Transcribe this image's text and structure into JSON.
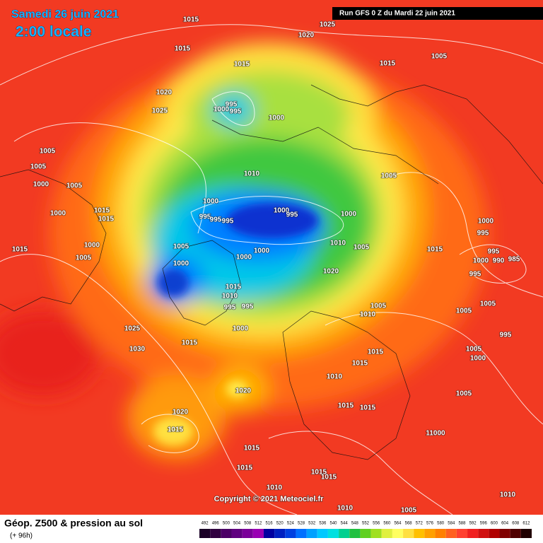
{
  "header": {
    "date": "Samedi 26 juin 2021",
    "time": "2:00 locale",
    "run": "Run GFS 0 Z du Mardi 22 juin 2021"
  },
  "copyright": "Copyright © 2021 Meteociel.fr",
  "footer": {
    "title": "Géop. Z500 & pression au sol",
    "subtitle": "(+ 96h)"
  },
  "legend": {
    "values": [
      492,
      496,
      500,
      504,
      508,
      512,
      516,
      520,
      524,
      528,
      532,
      536,
      540,
      544,
      548,
      552,
      556,
      560,
      564,
      568,
      572,
      576,
      580,
      584,
      588,
      592,
      596,
      600,
      604,
      608,
      612
    ],
    "colors": [
      "#1a0026",
      "#300040",
      "#4b0066",
      "#600080",
      "#7a0099",
      "#9900b3",
      "#0000a0",
      "#0020c0",
      "#0040e0",
      "#0070ff",
      "#00a0ff",
      "#00c8ff",
      "#00e0e0",
      "#00d090",
      "#20c040",
      "#60d020",
      "#a0e020",
      "#e0f040",
      "#ffff60",
      "#ffe040",
      "#ffc000",
      "#ffa000",
      "#ff8000",
      "#ff6020",
      "#ff4030",
      "#f02020",
      "#d01010",
      "#b00000",
      "#800000",
      "#500000",
      "#200000"
    ]
  },
  "isobar_labels": [
    "1015",
    "1025",
    "1020",
    "1015",
    "1015",
    "1015",
    "1005",
    "1020",
    "1025",
    "995",
    "1000",
    "995",
    "1000",
    "1005",
    "1005",
    "1010",
    "1005",
    "1000",
    "1005",
    "1000",
    "1000",
    "995",
    "1000",
    "1015",
    "1015",
    "1000",
    "995",
    "995",
    "995",
    "1000",
    "995",
    "1010",
    "1005",
    "1000",
    "1005",
    "1015",
    "1015",
    "1000",
    "1000",
    "995",
    "1000",
    "990",
    "985",
    "1005",
    "1000",
    "1020",
    "995",
    "1015",
    "1010",
    "1005",
    "1005",
    "995",
    "995",
    "1005",
    "1010",
    "1000",
    "995",
    "1025",
    "1015",
    "1030",
    "1005",
    "1015",
    "1015",
    "1000",
    "1010",
    "1020",
    "1005",
    "1015",
    "1015",
    "1020",
    "1015",
    "11000",
    "1015",
    "1015",
    "1015",
    "1015",
    "1010",
    "1010",
    "1010",
    "1005"
  ]
}
